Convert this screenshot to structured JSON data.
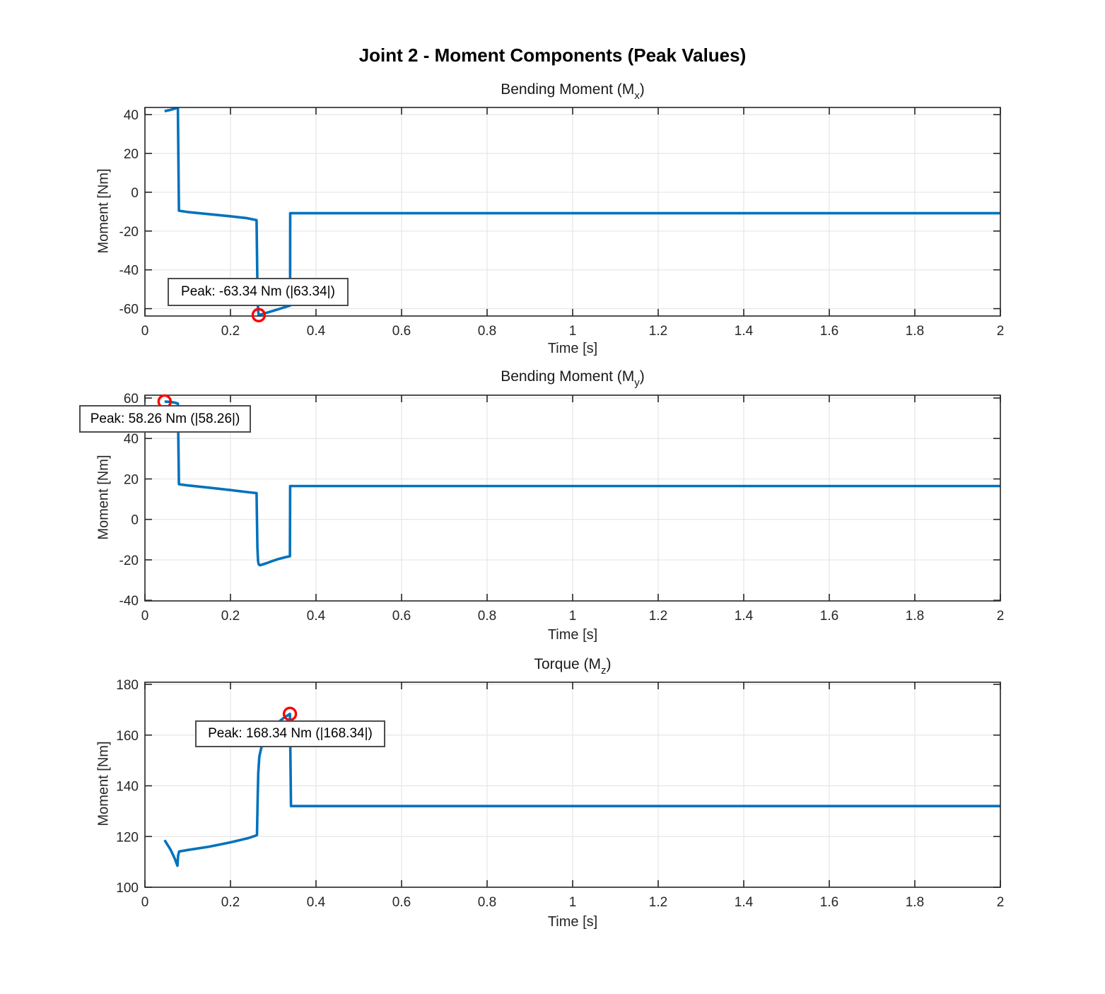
{
  "header": {
    "title": "Joint 2 - Moment Components (Peak Values)"
  },
  "chart_data": [
    {
      "type": "line",
      "title": "Bending Moment (Mx)",
      "title_pre": "Bending Moment (M",
      "title_sub": "x",
      "title_post": ")",
      "xlabel": "Time [s]",
      "ylabel": "Moment [Nm]",
      "xlim": [
        0,
        2
      ],
      "ylim": [
        -63.8,
        43.7
      ],
      "xticks": [
        0,
        0.2,
        0.4,
        0.6,
        0.8,
        1,
        1.2,
        1.4,
        1.6,
        1.8,
        2
      ],
      "xtick_labels": [
        "0",
        "0.2",
        "0.4",
        "0.6",
        "0.8",
        "1",
        "1.2",
        "1.4",
        "1.6",
        "1.8",
        "2"
      ],
      "yticks": [
        40,
        20,
        0,
        -20,
        -40,
        -60
      ],
      "ytick_labels": [
        "40",
        "20",
        "0",
        "-20",
        "-40",
        "-60"
      ],
      "grid": true,
      "line_color": "#0072BD",
      "series": [
        {
          "name": "Mx",
          "points": [
            [
              0.046,
              41.8
            ],
            [
              0.058,
              42.35
            ],
            [
              0.07,
              43.1
            ],
            [
              0.077,
              43.6
            ],
            [
              0.0795,
              -9.5
            ],
            [
              0.1,
              -10.2
            ],
            [
              0.15,
              -11.3
            ],
            [
              0.2,
              -12.4
            ],
            [
              0.24,
              -13.4
            ],
            [
              0.261,
              -14.4
            ],
            [
              0.263,
              -48
            ],
            [
              0.2645,
              -60.5
            ],
            [
              0.266,
              -63.34
            ],
            [
              0.285,
              -62.1
            ],
            [
              0.3,
              -61.1
            ],
            [
              0.315,
              -60.1
            ],
            [
              0.328,
              -59.2
            ],
            [
              0.337,
              -58.6
            ],
            [
              0.3393,
              -58.45
            ],
            [
              0.3397,
              -10.8
            ],
            [
              2,
              -10.8
            ]
          ]
        }
      ],
      "peak": {
        "t": 0.266,
        "value": -63.34,
        "abs_value": 63.34,
        "label": "Peak: -63.34 Nm (|63.34|)",
        "marker_color": "#FF0000"
      }
    },
    {
      "type": "line",
      "title": "Bending Moment (My)",
      "title_pre": "Bending Moment (M",
      "title_sub": "y",
      "title_post": ")",
      "xlabel": "Time [s]",
      "ylabel": "Moment [Nm]",
      "xlim": [
        0,
        2
      ],
      "ylim": [
        -40.3,
        61.4
      ],
      "xticks": [
        0,
        0.2,
        0.4,
        0.6,
        0.8,
        1,
        1.2,
        1.4,
        1.6,
        1.8,
        2
      ],
      "xtick_labels": [
        "0",
        "0.2",
        "0.4",
        "0.6",
        "0.8",
        "1",
        "1.2",
        "1.4",
        "1.6",
        "1.8",
        "2"
      ],
      "yticks": [
        60,
        40,
        20,
        0,
        -20,
        -40
      ],
      "ytick_labels": [
        "60",
        "40",
        "20",
        "0",
        "-20",
        "-40"
      ],
      "grid": true,
      "line_color": "#0072BD",
      "series": [
        {
          "name": "My",
          "points": [
            [
              0.046,
              58.26
            ],
            [
              0.058,
              58.1
            ],
            [
              0.068,
              57.8
            ],
            [
              0.077,
              57.3
            ],
            [
              0.0795,
              17.4
            ],
            [
              0.1,
              16.8
            ],
            [
              0.15,
              15.7
            ],
            [
              0.2,
              14.5
            ],
            [
              0.24,
              13.5
            ],
            [
              0.261,
              13.0
            ],
            [
              0.263,
              -14
            ],
            [
              0.2645,
              -20.5
            ],
            [
              0.266,
              -22.2
            ],
            [
              0.269,
              -22.7
            ],
            [
              0.285,
              -21.6
            ],
            [
              0.3,
              -20.4
            ],
            [
              0.315,
              -19.4
            ],
            [
              0.328,
              -18.7
            ],
            [
              0.337,
              -18.3
            ],
            [
              0.339,
              -18.2
            ],
            [
              0.3395,
              16.5
            ],
            [
              2,
              16.5
            ]
          ]
        }
      ],
      "peak": {
        "t": 0.046,
        "value": 58.26,
        "abs_value": 58.26,
        "label": "Peak: 58.26 Nm (|58.26|)",
        "marker_color": "#FF0000"
      }
    },
    {
      "type": "line",
      "title": "Torque (Mz)",
      "title_pre": "Torque (M",
      "title_sub": "z",
      "title_post": ")",
      "xlabel": "Time [s]",
      "ylabel": "Moment [Nm]",
      "xlim": [
        0,
        2
      ],
      "ylim": [
        100,
        180.84
      ],
      "xticks": [
        0,
        0.2,
        0.4,
        0.6,
        0.8,
        1,
        1.2,
        1.4,
        1.6,
        1.8,
        2
      ],
      "xtick_labels": [
        "0",
        "0.2",
        "0.4",
        "0.6",
        "0.8",
        "1",
        "1.2",
        "1.4",
        "1.6",
        "1.8",
        "2"
      ],
      "yticks": [
        180,
        160,
        140,
        120,
        100
      ],
      "ytick_labels": [
        "180",
        "160",
        "140",
        "120",
        "100"
      ],
      "grid": true,
      "line_color": "#0072BD",
      "series": [
        {
          "name": "Mz",
          "points": [
            [
              0.046,
              118.6
            ],
            [
              0.06,
              114.8
            ],
            [
              0.07,
              111.2
            ],
            [
              0.075,
              108.9
            ],
            [
              0.076,
              108.5
            ],
            [
              0.0775,
              112.5
            ],
            [
              0.08,
              114.1
            ],
            [
              0.1,
              114.7
            ],
            [
              0.15,
              116.0
            ],
            [
              0.2,
              117.7
            ],
            [
              0.24,
              119.3
            ],
            [
              0.258,
              120.3
            ],
            [
              0.262,
              120.6
            ],
            [
              0.2635,
              134
            ],
            [
              0.265,
              145
            ],
            [
              0.2675,
              151.5
            ],
            [
              0.272,
              155
            ],
            [
              0.285,
              159.4
            ],
            [
              0.3,
              162.8
            ],
            [
              0.315,
              165.5
            ],
            [
              0.328,
              167.2
            ],
            [
              0.335,
              167.9
            ],
            [
              0.339,
              168.34
            ],
            [
              0.3415,
              132
            ],
            [
              2,
              132
            ]
          ]
        }
      ],
      "peak": {
        "t": 0.339,
        "value": 168.34,
        "abs_value": 168.34,
        "label": "Peak: 168.34 Nm (|168.34|)",
        "marker_color": "#FF0000"
      }
    }
  ]
}
